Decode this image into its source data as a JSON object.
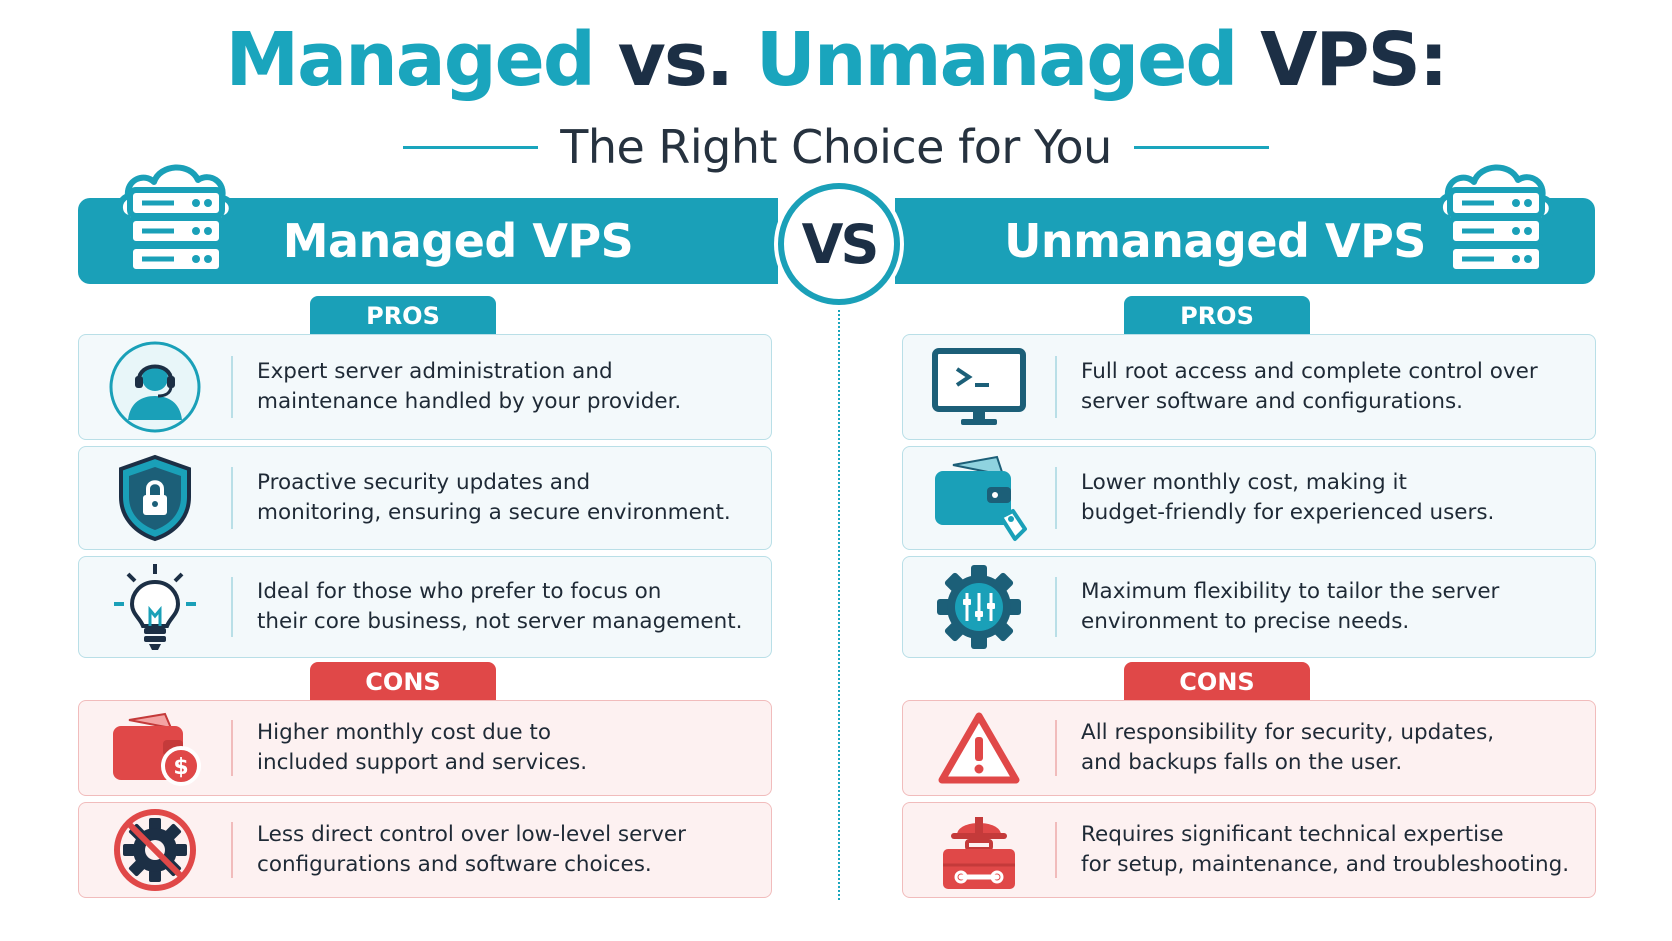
{
  "header": {
    "title_part1": "Managed",
    "title_part2": "vs.",
    "title_part3": "Unmanaged",
    "title_part4": "VPS:",
    "subtitle": "The Right Choice for You"
  },
  "vs_label": "VS",
  "colors": {
    "teal": "#1aa0b8",
    "navy": "#1c2f45",
    "red": "#e04848"
  },
  "managed": {
    "heading": "Managed VPS",
    "heading_icon": "cloud-server-icon",
    "pros_label": "PROS",
    "cons_label": "CONS",
    "pros": [
      {
        "icon": "support-agent-icon",
        "text": "Expert server administration and\nmaintenance handled by your provider."
      },
      {
        "icon": "security-shield-icon",
        "text": "Proactive security updates and\nmonitoring, ensuring a secure environment."
      },
      {
        "icon": "lightbulb-icon",
        "text": "Ideal for those who prefer to focus on\ntheir core business, not server management."
      }
    ],
    "cons": [
      {
        "icon": "wallet-dollar-icon",
        "text": "Higher monthly cost due to\nincluded support and services."
      },
      {
        "icon": "no-settings-icon",
        "text": "Less direct control over low-level server\nconfigurations and software choices."
      }
    ]
  },
  "unmanaged": {
    "heading": "Unmanaged VPS",
    "heading_icon": "cloud-server-icon",
    "pros_label": "PROS",
    "cons_label": "CONS",
    "pros": [
      {
        "icon": "terminal-monitor-icon",
        "text": "Full root access and complete control over\nserver software and configurations."
      },
      {
        "icon": "wallet-tag-icon",
        "text": "Lower monthly cost, making it\nbudget-friendly for experienced users."
      },
      {
        "icon": "gear-sliders-icon",
        "text": "Maximum flexibility to tailor the server\nenvironment to precise needs."
      }
    ],
    "cons": [
      {
        "icon": "warning-triangle-icon",
        "text": "All responsibility for security, updates,\nand backups falls on the user."
      },
      {
        "icon": "toolbox-helmet-icon",
        "text": "Requires significant technical expertise\nfor setup, maintenance, and troubleshooting."
      }
    ]
  }
}
